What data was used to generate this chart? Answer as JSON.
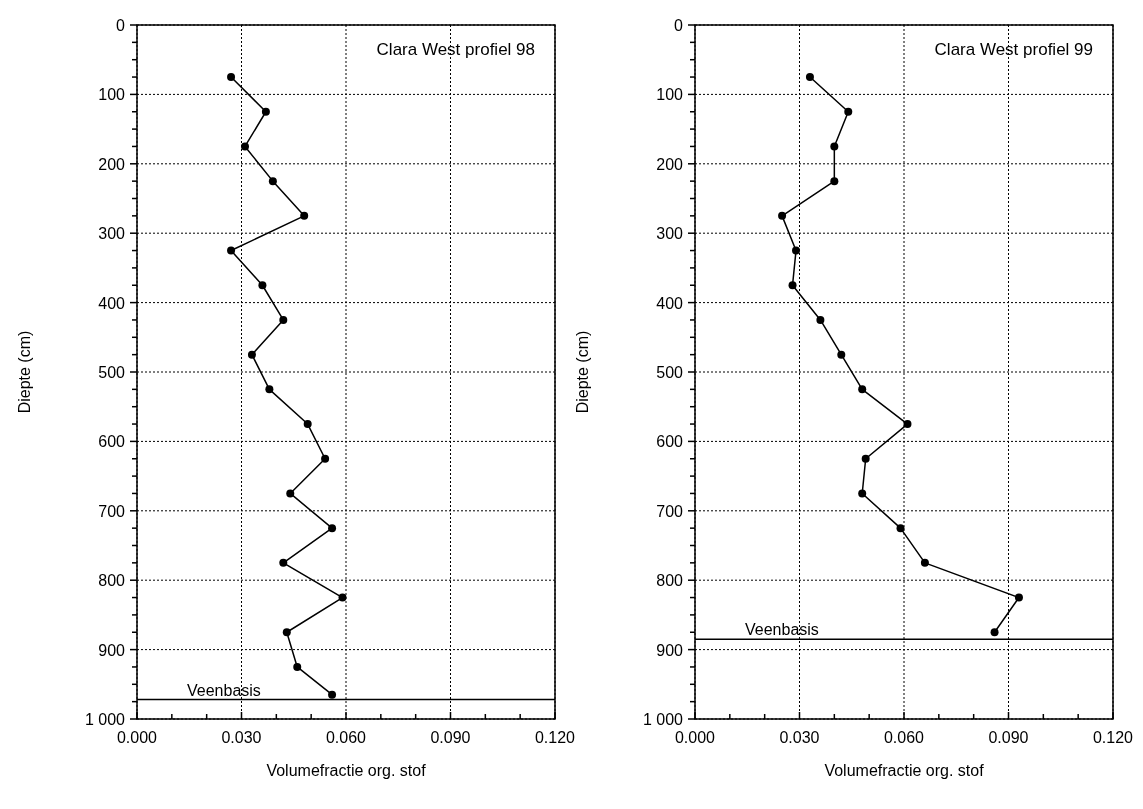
{
  "chart_data": [
    {
      "type": "line",
      "title": "Clara West profiel 98",
      "xlabel": "Volumefractie org. stof",
      "ylabel": "Diepte (cm)",
      "marker": "circle",
      "line_style": "solid",
      "grid": true,
      "xlim": [
        0,
        0.12
      ],
      "xticks": [
        {
          "value": 0,
          "label": "0.000"
        },
        {
          "value": 0.01,
          "label": null
        },
        {
          "value": 0.02,
          "label": null
        },
        {
          "value": 0.03,
          "label": "0.030"
        },
        {
          "value": 0.04,
          "label": null
        },
        {
          "value": 0.05,
          "label": null
        },
        {
          "value": 0.06,
          "label": "0.060"
        },
        {
          "value": 0.07,
          "label": null
        },
        {
          "value": 0.08,
          "label": null
        },
        {
          "value": 0.09,
          "label": "0.090"
        },
        {
          "value": 0.1,
          "label": null
        },
        {
          "value": 0.11,
          "label": null
        },
        {
          "value": 0.12,
          "label": "0.120"
        }
      ],
      "ylim": [
        1000,
        0
      ],
      "yticks": [
        0,
        {
          "value": 25,
          "label": null
        },
        {
          "value": 50,
          "label": null
        },
        {
          "value": 75,
          "label": null
        },
        100,
        {
          "value": 125,
          "label": null
        },
        {
          "value": 150,
          "label": null
        },
        {
          "value": 175,
          "label": null
        },
        200,
        {
          "value": 225,
          "label": null
        },
        {
          "value": 250,
          "label": null
        },
        {
          "value": 275,
          "label": null
        },
        300,
        {
          "value": 325,
          "label": null
        },
        {
          "value": 350,
          "label": null
        },
        {
          "value": 375,
          "label": null
        },
        400,
        {
          "value": 425,
          "label": null
        },
        {
          "value": 450,
          "label": null
        },
        {
          "value": 475,
          "label": null
        },
        500,
        {
          "value": 525,
          "label": null
        },
        {
          "value": 550,
          "label": null
        },
        {
          "value": 575,
          "label": null
        },
        600,
        {
          "value": 625,
          "label": null
        },
        {
          "value": 650,
          "label": null
        },
        {
          "value": 675,
          "label": null
        },
        700,
        {
          "value": 725,
          "label": null
        },
        {
          "value": 750,
          "label": null
        },
        {
          "value": 775,
          "label": null
        },
        800,
        {
          "value": 825,
          "label": null
        },
        {
          "value": 850,
          "label": null
        },
        {
          "value": 875,
          "label": null
        },
        900,
        {
          "value": 925,
          "label": null
        },
        {
          "value": 950,
          "label": null
        },
        {
          "value": 975,
          "label": null
        },
        {
          "value": 1000,
          "label": "1 000"
        }
      ],
      "ref_lines": [
        {
          "axis": "y",
          "value": 972,
          "label": "Veenbasis",
          "color": "#000000"
        }
      ],
      "series": [
        {
          "color": "#000000",
          "x": [
            0.027,
            0.037,
            0.031,
            0.039,
            0.048,
            0.027,
            0.036,
            0.042,
            0.033,
            0.038,
            0.049,
            0.054,
            0.044,
            0.056,
            0.042,
            0.059,
            0.043,
            0.046,
            0.056
          ],
          "values": [
            75,
            125,
            175,
            225,
            275,
            325,
            375,
            425,
            475,
            525,
            575,
            625,
            675,
            725,
            775,
            825,
            875,
            925,
            965
          ]
        }
      ]
    },
    {
      "type": "line",
      "title": "Clara West profiel 99",
      "xlabel": "Volumefractie org. stof",
      "ylabel": "Diepte (cm)",
      "marker": "circle",
      "line_style": "solid",
      "grid": true,
      "xlim": [
        0,
        0.12
      ],
      "xticks": [
        {
          "value": 0,
          "label": "0.000"
        },
        {
          "value": 0.01,
          "label": null
        },
        {
          "value": 0.02,
          "label": null
        },
        {
          "value": 0.03,
          "label": "0.030"
        },
        {
          "value": 0.04,
          "label": null
        },
        {
          "value": 0.05,
          "label": null
        },
        {
          "value": 0.06,
          "label": "0.060"
        },
        {
          "value": 0.07,
          "label": null
        },
        {
          "value": 0.08,
          "label": null
        },
        {
          "value": 0.09,
          "label": "0.090"
        },
        {
          "value": 0.1,
          "label": null
        },
        {
          "value": 0.11,
          "label": null
        },
        {
          "value": 0.12,
          "label": "0.120"
        }
      ],
      "ylim": [
        1000,
        0
      ],
      "yticks": [
        0,
        {
          "value": 25,
          "label": null
        },
        {
          "value": 50,
          "label": null
        },
        {
          "value": 75,
          "label": null
        },
        100,
        {
          "value": 125,
          "label": null
        },
        {
          "value": 150,
          "label": null
        },
        {
          "value": 175,
          "label": null
        },
        200,
        {
          "value": 225,
          "label": null
        },
        {
          "value": 250,
          "label": null
        },
        {
          "value": 275,
          "label": null
        },
        300,
        {
          "value": 325,
          "label": null
        },
        {
          "value": 350,
          "label": null
        },
        {
          "value": 375,
          "label": null
        },
        400,
        {
          "value": 425,
          "label": null
        },
        {
          "value": 450,
          "label": null
        },
        {
          "value": 475,
          "label": null
        },
        500,
        {
          "value": 525,
          "label": null
        },
        {
          "value": 550,
          "label": null
        },
        {
          "value": 575,
          "label": null
        },
        600,
        {
          "value": 625,
          "label": null
        },
        {
          "value": 650,
          "label": null
        },
        {
          "value": 675,
          "label": null
        },
        700,
        {
          "value": 725,
          "label": null
        },
        {
          "value": 750,
          "label": null
        },
        {
          "value": 775,
          "label": null
        },
        800,
        {
          "value": 825,
          "label": null
        },
        {
          "value": 850,
          "label": null
        },
        {
          "value": 875,
          "label": null
        },
        900,
        {
          "value": 925,
          "label": null
        },
        {
          "value": 950,
          "label": null
        },
        {
          "value": 975,
          "label": null
        },
        {
          "value": 1000,
          "label": "1 000"
        }
      ],
      "ref_lines": [
        {
          "axis": "y",
          "value": 885,
          "label": "Veenbasis",
          "color": "#000000"
        }
      ],
      "series": [
        {
          "color": "#000000",
          "x": [
            0.033,
            0.044,
            0.04,
            0.04,
            0.025,
            0.029,
            0.028,
            0.036,
            0.042,
            0.048,
            0.061,
            0.049,
            0.048,
            0.059,
            0.066,
            0.093,
            0.086
          ],
          "values": [
            75,
            125,
            175,
            225,
            275,
            325,
            375,
            425,
            475,
            525,
            575,
            625,
            675,
            725,
            775,
            825,
            875
          ]
        }
      ]
    }
  ]
}
